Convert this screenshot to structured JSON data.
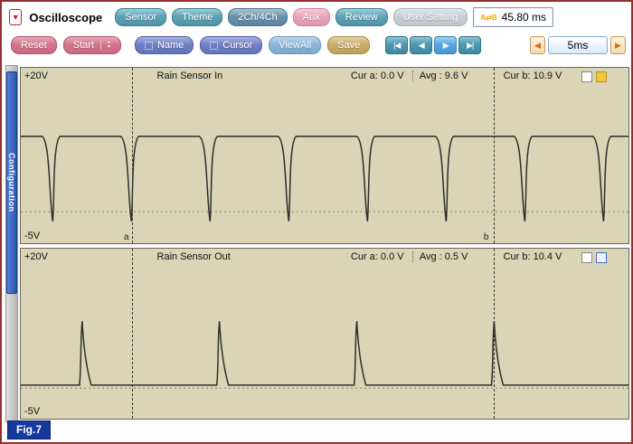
{
  "app": {
    "title": "Oscilloscope",
    "logo_glyph": "▼",
    "fig_label": "Fig.7"
  },
  "toolbar_top": {
    "buttons": [
      {
        "label": "Sensor"
      },
      {
        "label": "Theme"
      },
      {
        "label": "2Ch/4Ch"
      },
      {
        "label": "Aux"
      },
      {
        "label": "Review"
      },
      {
        "label": "User Setting"
      }
    ],
    "time_readout": {
      "icon": "A⇄B",
      "value": "45.80 ms"
    }
  },
  "toolbar_controls": {
    "reset": "Reset",
    "start": "Start",
    "spinner_up": "▲",
    "spinner_down": "▼",
    "name": "Name",
    "cursor": "Cursor",
    "viewall": "ViewAll",
    "save": "Save",
    "playback": [
      "|◀",
      "◀",
      "▶",
      "▶|"
    ],
    "timebase": {
      "prev": "◀",
      "value": "5ms",
      "next": "▶"
    }
  },
  "sidebar": {
    "tab_label": "Configuration"
  },
  "channels": [
    {
      "title": "Rain Sensor In",
      "v_top": "+20V",
      "v_bottom": "-5V",
      "cur_a": "Cur a: 0.0 V",
      "avg": "Avg : 9.6 V",
      "cur_b": "Cur b: 10.9 V",
      "cursor_a_label": "a",
      "cursor_b_label": "b",
      "indicator": "yellow"
    },
    {
      "title": "Rain Sensor Out",
      "v_top": "+20V",
      "v_bottom": "-5V",
      "cur_a": "Cur a: 0.0 V",
      "avg": "Avg : 0.5 V",
      "cur_b": "Cur b: 10.4 V",
      "indicator": "blue"
    }
  ],
  "chart_data": [
    {
      "type": "line",
      "title": "Rain Sensor In",
      "ylabel": "V",
      "ylim": [
        -5,
        20
      ],
      "timebase": "5ms/div",
      "v_top_edge": 22.9,
      "v_bottom_edge": -5,
      "high_v": 12,
      "low_v": -1.5,
      "pulse_phase_frac": 0.054,
      "pulse_period_frac": 0.1295,
      "max_frac": 1.0,
      "cursor_a_frac": 0.183,
      "cursor_b_frac": 0.778,
      "readings": {
        "cur_a_v": 0.0,
        "avg_v": 9.6,
        "cur_b_v": 10.9
      }
    },
    {
      "type": "line",
      "title": "Rain Sensor Out",
      "ylabel": "V",
      "ylim": [
        -5,
        20
      ],
      "timebase": "5ms/div",
      "v_top_edge": 22.9,
      "v_bottom_edge": -5,
      "base_v": 0.5,
      "peak_v": 11,
      "pulse_phase_frac": 0.101,
      "pulse_period_frac": 0.226,
      "max_frac": 0.85,
      "cursor_a_frac": 0.183,
      "cursor_b_frac": 0.778,
      "readings": {
        "cur_a_v": 0.0,
        "avg_v": 0.5,
        "cur_b_v": 10.4
      }
    }
  ],
  "colors": {
    "scope_bg": "#d9d5b6",
    "trace": "#2e2e2e",
    "accent_blue": "#2a55b0",
    "fig_bg": "#16399e",
    "frame_border": "#93302e"
  }
}
